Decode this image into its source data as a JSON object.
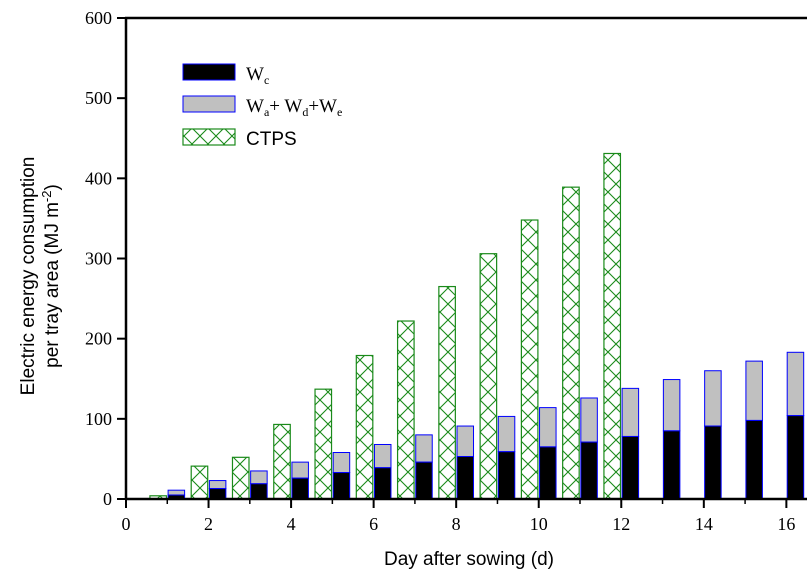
{
  "chart_data": {
    "type": "bar",
    "xlabel": "Day after sowing (d)",
    "ylabel_line1": "Electric energy consumption",
    "ylabel_line2_prefix": "per tray area (MJ m",
    "ylabel_line2_sup": "-2",
    "ylabel_line2_suffix": ")",
    "xlim": [
      0,
      16.5
    ],
    "ylim": [
      0,
      600
    ],
    "xticks": [
      0,
      2,
      4,
      6,
      8,
      10,
      12,
      14,
      16
    ],
    "yticks": [
      0,
      100,
      200,
      300,
      400,
      500,
      600
    ],
    "legend_position": "top-left",
    "series": [
      {
        "key": "wc",
        "legend_main": "W",
        "legend_sub": "c",
        "color": "#000000",
        "edge": "#0000ff",
        "x": [
          1,
          2,
          3,
          4,
          5,
          6,
          7,
          8,
          9,
          10,
          11,
          12,
          13,
          14,
          15,
          16
        ],
        "values": [
          5,
          13,
          19,
          26,
          33,
          39,
          46,
          53,
          59,
          65,
          71,
          78,
          85,
          91,
          98,
          104
        ]
      },
      {
        "key": "wade",
        "legend_parts": [
          {
            "main": "W",
            "sub": "a"
          },
          {
            "main": "+ W",
            "sub": "d"
          },
          {
            "main": "+W",
            "sub": "e"
          }
        ],
        "color": "#c0c0c0",
        "edge": "#0000ff",
        "x": [
          1,
          2,
          3,
          4,
          5,
          6,
          7,
          8,
          9,
          10,
          11,
          12,
          13,
          14,
          15,
          16
        ],
        "values": [
          6,
          10,
          16,
          20,
          25,
          29,
          34,
          38,
          44,
          49,
          55,
          60,
          64,
          69,
          74,
          79
        ],
        "totals": [
          11,
          23,
          35,
          46,
          58,
          68,
          80,
          91,
          103,
          114,
          126,
          138,
          149,
          160,
          172,
          183
        ]
      },
      {
        "key": "ctps",
        "legend": "CTPS",
        "color": "#1a8a1a",
        "x": [
          1,
          2,
          3,
          4,
          5,
          6,
          7,
          8,
          9,
          10,
          11,
          12
        ],
        "values": [
          4,
          41,
          52,
          93,
          137,
          179,
          222,
          265,
          306,
          348,
          389,
          431
        ]
      }
    ]
  }
}
